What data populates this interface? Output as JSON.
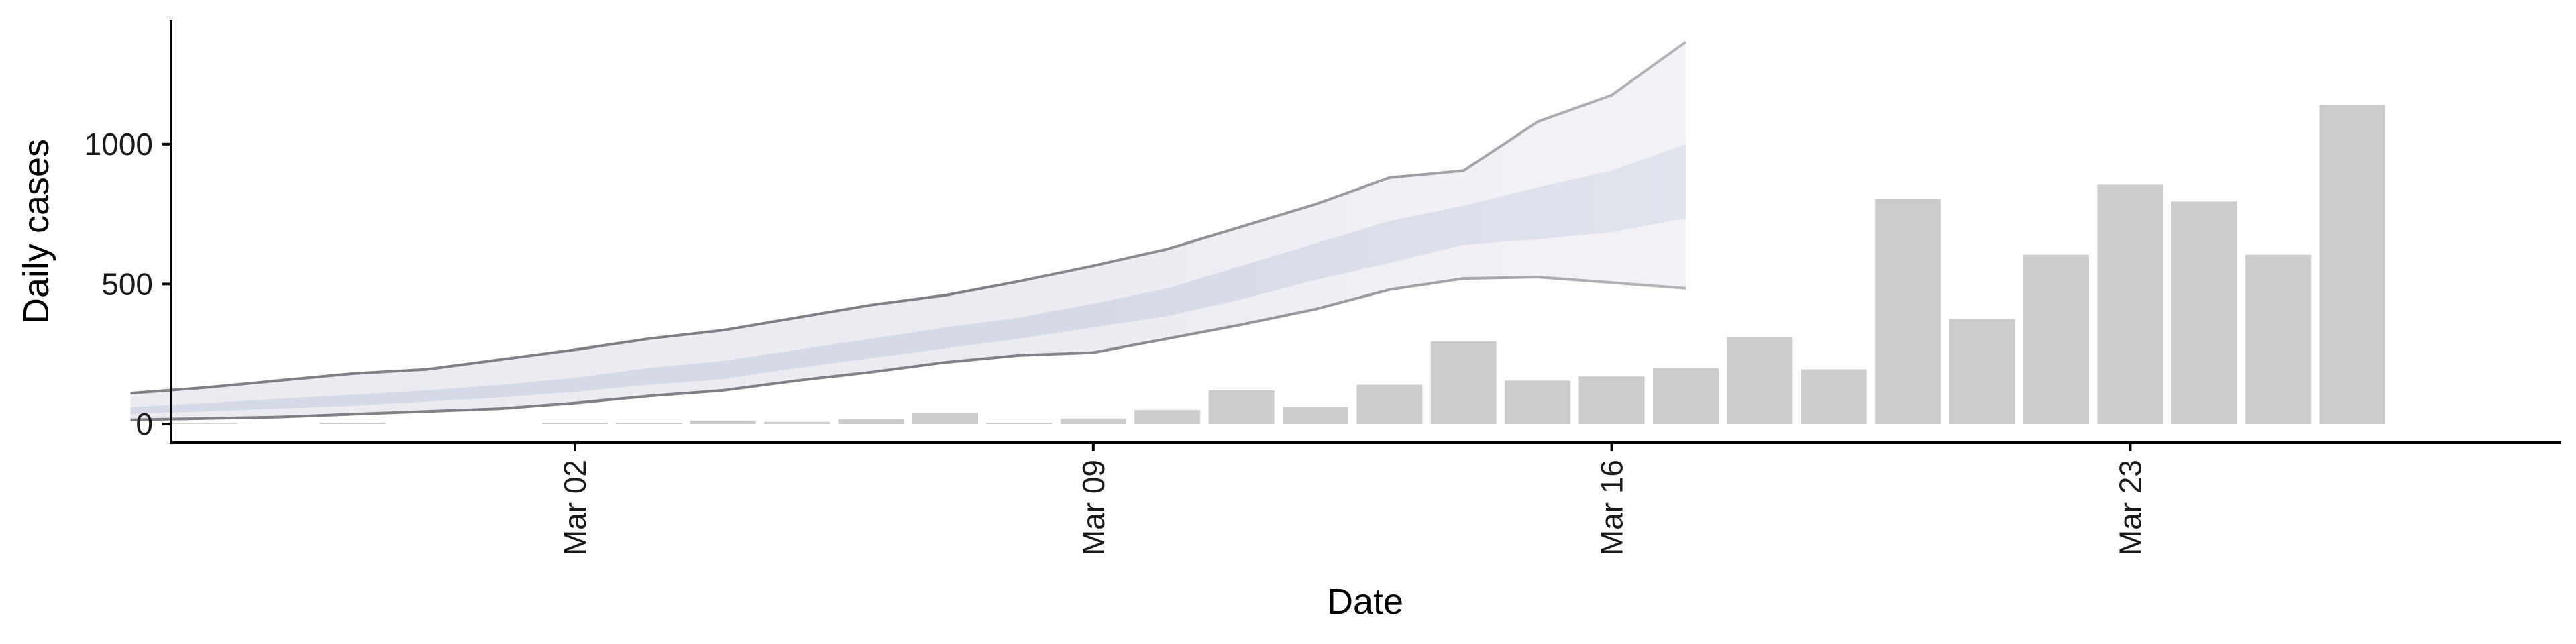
{
  "chart_data": {
    "type": "bar",
    "xlabel": "Date",
    "ylabel": "Daily cases",
    "ylim": [
      0,
      1450
    ],
    "yticks": [
      0,
      500,
      1000
    ],
    "xticks": [
      {
        "date": "2020-03-02",
        "label": "Mar 02"
      },
      {
        "date": "2020-03-09",
        "label": "Mar 09"
      },
      {
        "date": "2020-03-16",
        "label": "Mar 16"
      },
      {
        "date": "2020-03-23",
        "label": "Mar 23"
      }
    ],
    "grid": false,
    "legend": "none",
    "x_label_rotation": "vertical",
    "colors": {
      "bars": "#cccccc",
      "outer_band": "#ebecf2",
      "outer_band_light": "#f3f3f7",
      "inner_band": "#d6d9e6",
      "inner_band_light": "#e1e3ed",
      "band_line_dark": "#7f7f85",
      "band_line_light": "#b5b5ba",
      "axis": "#000000"
    },
    "bars": [
      {
        "date": "2020-02-25",
        "value": 0
      },
      {
        "date": "2020-02-26",
        "value": 2
      },
      {
        "date": "2020-02-27",
        "value": 0
      },
      {
        "date": "2020-02-28",
        "value": 5
      },
      {
        "date": "2020-02-29",
        "value": 0
      },
      {
        "date": "2020-03-01",
        "value": 0
      },
      {
        "date": "2020-03-02",
        "value": 5
      },
      {
        "date": "2020-03-03",
        "value": 5
      },
      {
        "date": "2020-03-04",
        "value": 12
      },
      {
        "date": "2020-03-05",
        "value": 8
      },
      {
        "date": "2020-03-06",
        "value": 18
      },
      {
        "date": "2020-03-07",
        "value": 40
      },
      {
        "date": "2020-03-08",
        "value": 5
      },
      {
        "date": "2020-03-09",
        "value": 20
      },
      {
        "date": "2020-03-10",
        "value": 50
      },
      {
        "date": "2020-03-11",
        "value": 120
      },
      {
        "date": "2020-03-12",
        "value": 60
      },
      {
        "date": "2020-03-13",
        "value": 140
      },
      {
        "date": "2020-03-14",
        "value": 295
      },
      {
        "date": "2020-03-15",
        "value": 155
      },
      {
        "date": "2020-03-16",
        "value": 170
      },
      {
        "date": "2020-03-17",
        "value": 200
      },
      {
        "date": "2020-03-18",
        "value": 310
      },
      {
        "date": "2020-03-19",
        "value": 195
      },
      {
        "date": "2020-03-20",
        "value": 805
      },
      {
        "date": "2020-03-21",
        "value": 375
      },
      {
        "date": "2020-03-22",
        "value": 605
      },
      {
        "date": "2020-03-23",
        "value": 855
      },
      {
        "date": "2020-03-24",
        "value": 795
      },
      {
        "date": "2020-03-25",
        "value": 605
      },
      {
        "date": "2020-03-26",
        "value": 1140
      }
    ],
    "interval": [
      {
        "date": "2020-02-25",
        "outer_low": 15,
        "inner_low": 35,
        "inner_high": 60,
        "outer_high": 110
      },
      {
        "date": "2020-02-26",
        "outer_low": 20,
        "inner_low": 45,
        "inner_high": 75,
        "outer_high": 130
      },
      {
        "date": "2020-02-27",
        "outer_low": 25,
        "inner_low": 55,
        "inner_high": 90,
        "outer_high": 155
      },
      {
        "date": "2020-02-28",
        "outer_low": 35,
        "inner_low": 65,
        "inner_high": 105,
        "outer_high": 180
      },
      {
        "date": "2020-02-29",
        "outer_low": 45,
        "inner_low": 80,
        "inner_high": 120,
        "outer_high": 195
      },
      {
        "date": "2020-03-01",
        "outer_low": 55,
        "inner_low": 95,
        "inner_high": 140,
        "outer_high": 230
      },
      {
        "date": "2020-03-02",
        "outer_low": 75,
        "inner_low": 115,
        "inner_high": 165,
        "outer_high": 265
      },
      {
        "date": "2020-03-03",
        "outer_low": 100,
        "inner_low": 140,
        "inner_high": 200,
        "outer_high": 305
      },
      {
        "date": "2020-03-04",
        "outer_low": 120,
        "inner_low": 160,
        "inner_high": 225,
        "outer_high": 335
      },
      {
        "date": "2020-03-05",
        "outer_low": 155,
        "inner_low": 200,
        "inner_high": 265,
        "outer_high": 380
      },
      {
        "date": "2020-03-06",
        "outer_low": 185,
        "inner_low": 235,
        "inner_high": 305,
        "outer_high": 425
      },
      {
        "date": "2020-03-07",
        "outer_low": 220,
        "inner_low": 270,
        "inner_high": 345,
        "outer_high": 460
      },
      {
        "date": "2020-03-08",
        "outer_low": 245,
        "inner_low": 305,
        "inner_high": 380,
        "outer_high": 510
      },
      {
        "date": "2020-03-09",
        "outer_low": 255,
        "inner_low": 345,
        "inner_high": 430,
        "outer_high": 565
      },
      {
        "date": "2020-03-10",
        "outer_low": 305,
        "inner_low": 385,
        "inner_high": 485,
        "outer_high": 625
      },
      {
        "date": "2020-03-11",
        "outer_low": 355,
        "inner_low": 445,
        "inner_high": 565,
        "outer_high": 705
      },
      {
        "date": "2020-03-12",
        "outer_low": 410,
        "inner_low": 515,
        "inner_high": 645,
        "outer_high": 785
      },
      {
        "date": "2020-03-13",
        "outer_low": 480,
        "inner_low": 575,
        "inner_high": 725,
        "outer_high": 880
      },
      {
        "date": "2020-03-14",
        "outer_low": 520,
        "inner_low": 640,
        "inner_high": 780,
        "outer_high": 905
      },
      {
        "date": "2020-03-15",
        "outer_low": 525,
        "inner_low": 660,
        "inner_high": 845,
        "outer_high": 1080
      },
      {
        "date": "2020-03-16",
        "outer_low": 505,
        "inner_low": 685,
        "inner_high": 905,
        "outer_high": 1175
      },
      {
        "date": "2020-03-17",
        "outer_low": 485,
        "inner_low": 735,
        "inner_high": 1000,
        "outer_high": 1365
      }
    ]
  }
}
